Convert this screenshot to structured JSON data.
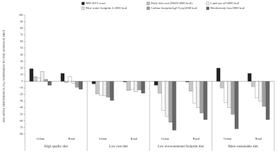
{
  "chart_data": {
    "type": "bar",
    "y_label": "RELATIVE DIFFERENCE (%) COMPARED TO THE AVERAGE DIET",
    "groups": [
      "High quality diet",
      "Low cost diet",
      "Low environmental footprint diet",
      "More sustainable diet"
    ],
    "categories": [
      "Urban",
      "Rural",
      "Urban",
      "Rural",
      "Urban",
      "Rural",
      "Urban",
      "Rural"
    ],
    "series": [
      {
        "name": "HEI-2015 score",
        "color": "#222222",
        "values": [
          19,
          12,
          -4,
          -1,
          -6,
          -1,
          20,
          12
        ]
      },
      {
        "name": "Daily diet cost (MXN/2000 kcal)",
        "color": "#c8c8c8",
        "values": [
          7,
          -2,
          -19,
          -14,
          -18,
          -15,
          -10,
          -8
        ]
      },
      {
        "name": "Land use m²/2000 kcal",
        "color": "#ffffff",
        "values": [
          5,
          7,
          -21,
          -12,
          -44,
          -33,
          -32,
          -25
        ]
      },
      {
        "name": "Blue water footprint L/2000 kcal",
        "color": "#eeeeee",
        "values": [
          15,
          -3,
          -22,
          -16,
          -53,
          -40,
          -40,
          -30
        ]
      },
      {
        "name": "Carbon footprint kgCO₂eq/2000 kcal",
        "color": "#a0a0a0",
        "values": [
          3,
          -9,
          -24,
          -13,
          -62,
          -48,
          -50,
          -38
        ]
      },
      {
        "name": "Biodiversity loss/2000 kcal",
        "color": "#666666",
        "values": [
          -6,
          -12,
          -29,
          -18,
          -74,
          -58,
          -72,
          -58
        ]
      }
    ],
    "ylim": [
      -80,
      100
    ],
    "yticks": [
      -80,
      -70,
      -60,
      -50,
      -40,
      -30,
      -20,
      -10,
      0,
      10,
      20,
      30,
      40,
      50,
      60,
      70,
      80,
      90,
      100
    ]
  }
}
